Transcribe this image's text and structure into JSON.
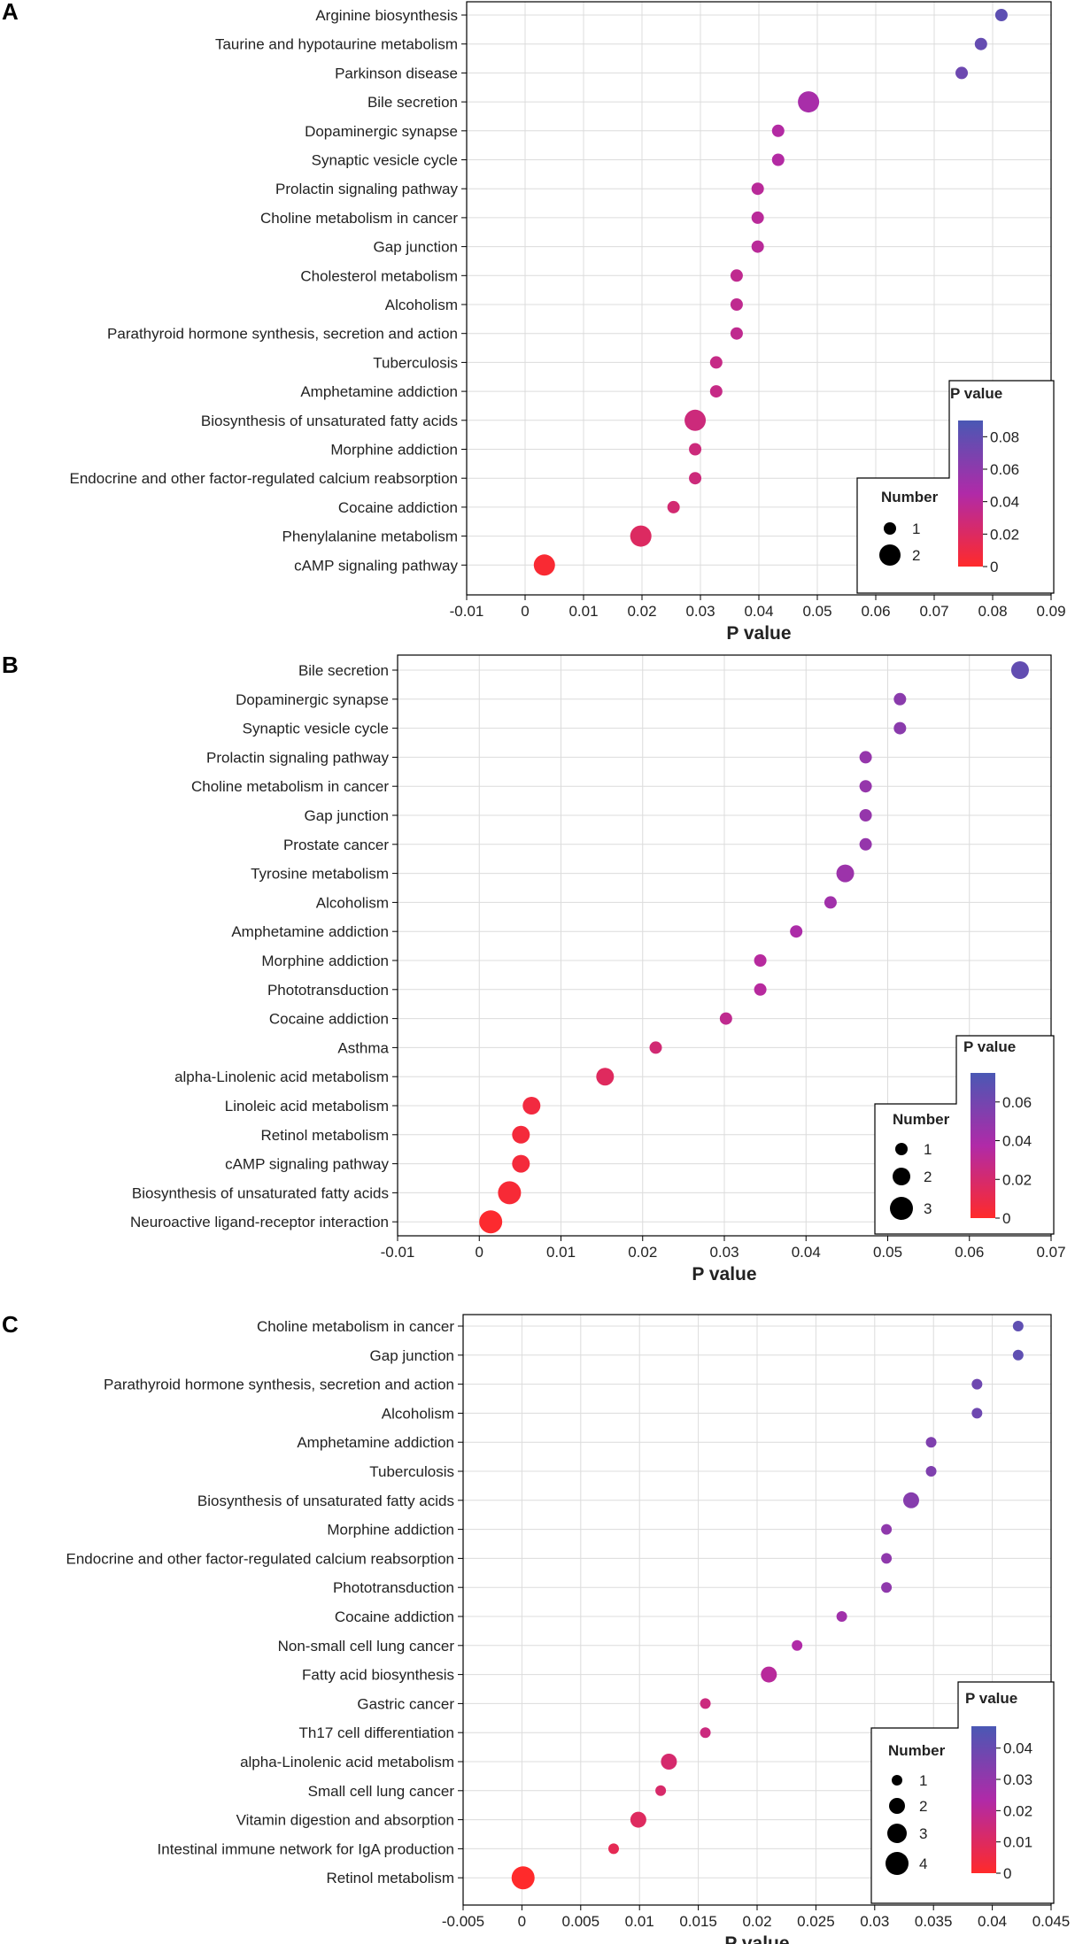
{
  "chart_data": [
    {
      "type": "scatter",
      "panel": "A",
      "xlabel": "P value",
      "xlim": [
        -0.01,
        0.09
      ],
      "xticks": [
        -0.01,
        0,
        0.01,
        0.02,
        0.03,
        0.04,
        0.05,
        0.06,
        0.07,
        0.08,
        0.09
      ],
      "xtick_labels": [
        "-0.01",
        "0",
        "0.01",
        "0.02",
        "0.03",
        "0.04",
        "0.05",
        "0.06",
        "0.07",
        "0.08",
        "0.09"
      ],
      "categories": [
        "Arginine biosynthesis",
        "Taurine and hypotaurine metabolism",
        "Parkinson disease",
        "Bile secretion",
        "Dopaminergic synapse",
        "Synaptic vesicle cycle",
        "Prolactin signaling pathway",
        "Choline metabolism in cancer",
        "Gap junction",
        "Cholesterol metabolism",
        "Alcoholism",
        "Parathyroid hormone synthesis, secretion and action",
        "Tuberculosis",
        "Amphetamine addiction",
        "Biosynthesis of unsaturated fatty acids",
        "Morphine addiction",
        "Endocrine and other factor-regulated calcium reabsorption",
        "Cocaine addiction",
        "Phenylalanine metabolism",
        "cAMP signaling pathway"
      ],
      "p_values": [
        0.0815,
        0.078,
        0.0747,
        0.0485,
        0.0433,
        0.0433,
        0.0398,
        0.0398,
        0.0398,
        0.0362,
        0.0362,
        0.0362,
        0.0327,
        0.0327,
        0.0291,
        0.0291,
        0.0291,
        0.0254,
        0.0198,
        0.0033
      ],
      "numbers": [
        1,
        1,
        1,
        2,
        1,
        1,
        1,
        1,
        1,
        1,
        1,
        1,
        1,
        1,
        2,
        1,
        1,
        1,
        2,
        2
      ],
      "colorbar": {
        "title": "P value",
        "min": 0,
        "max": 0.09,
        "ticks": [
          0,
          0.02,
          0.04,
          0.06,
          0.08
        ],
        "tick_labels": [
          "0",
          "0.02",
          "0.04",
          "0.06",
          "0.08"
        ]
      },
      "size_legend": {
        "title": "Number",
        "values": [
          1,
          2
        ],
        "labels": [
          "1",
          "2"
        ]
      }
    },
    {
      "type": "scatter",
      "panel": "B",
      "xlabel": "P value",
      "xlim": [
        -0.01,
        0.07
      ],
      "xticks": [
        -0.01,
        0,
        0.01,
        0.02,
        0.03,
        0.04,
        0.05,
        0.06,
        0.07
      ],
      "xtick_labels": [
        "-0.01",
        "0",
        "0.01",
        "0.02",
        "0.03",
        "0.04",
        "0.05",
        "0.06",
        "0.07"
      ],
      "categories": [
        "Bile secretion",
        "Dopaminergic synapse",
        "Synaptic vesicle cycle",
        "Prolactin signaling pathway",
        "Choline metabolism in cancer",
        "Gap junction",
        "Prostate cancer",
        "Tyrosine metabolism",
        "Alcoholism",
        "Amphetamine addiction",
        "Morphine addiction",
        "Phototransduction",
        "Cocaine addiction",
        "Asthma",
        "alpha-Linolenic acid metabolism",
        "Linoleic acid metabolism",
        "Retinol metabolism",
        "cAMP signaling pathway",
        "Biosynthesis of unsaturated fatty acids",
        "Neuroactive ligand-receptor interaction"
      ],
      "p_values": [
        0.0662,
        0.0515,
        0.0515,
        0.0473,
        0.0473,
        0.0473,
        0.0473,
        0.0448,
        0.043,
        0.0388,
        0.0344,
        0.0344,
        0.0302,
        0.0216,
        0.0154,
        0.0064,
        0.0051,
        0.0051,
        0.0037,
        0.0014
      ],
      "numbers": [
        2,
        1,
        1,
        1,
        1,
        1,
        1,
        2,
        1,
        1,
        1,
        1,
        1,
        1,
        2,
        2,
        2,
        2,
        3,
        3
      ],
      "colorbar": {
        "title": "P value",
        "min": 0,
        "max": 0.075,
        "ticks": [
          0,
          0.02,
          0.04,
          0.06
        ],
        "tick_labels": [
          "0",
          "0.02",
          "0.04",
          "0.06"
        ]
      },
      "size_legend": {
        "title": "Number",
        "values": [
          1,
          2,
          3
        ],
        "labels": [
          "1",
          "2",
          "3"
        ]
      }
    },
    {
      "type": "scatter",
      "panel": "C",
      "xlabel": "P value",
      "xlim": [
        -0.005,
        0.045
      ],
      "xticks": [
        -0.005,
        0,
        0.005,
        0.01,
        0.015,
        0.02,
        0.025,
        0.03,
        0.035,
        0.04,
        0.045
      ],
      "xtick_labels": [
        "-0.005",
        "0",
        "0.005",
        "0.01",
        "0.015",
        "0.02",
        "0.025",
        "0.03",
        "0.035",
        "0.04",
        "0.045"
      ],
      "categories": [
        "Choline metabolism in cancer",
        "Gap junction",
        "Parathyroid hormone synthesis, secretion and action",
        "Alcoholism",
        "Amphetamine addiction",
        "Tuberculosis",
        "Biosynthesis of unsaturated fatty acids",
        "Morphine addiction",
        "Endocrine and other factor-regulated calcium reabsorption",
        "Phototransduction",
        "Cocaine addiction",
        "Non-small cell lung cancer",
        "Fatty acid biosynthesis",
        "Gastric cancer",
        "Th17 cell differentiation",
        "alpha-Linolenic acid metabolism",
        "Small cell lung cancer",
        "Vitamin digestion and absorption",
        "Intestinal immune network for IgA production",
        "Retinol metabolism"
      ],
      "p_values": [
        0.0422,
        0.0422,
        0.0387,
        0.0387,
        0.0348,
        0.0348,
        0.0331,
        0.031,
        0.031,
        0.031,
        0.0272,
        0.0234,
        0.021,
        0.0156,
        0.0156,
        0.0125,
        0.0118,
        0.0099,
        0.0078,
        0.0001
      ],
      "numbers": [
        1,
        1,
        1,
        1,
        1,
        1,
        2,
        1,
        1,
        1,
        1,
        1,
        2,
        1,
        1,
        2,
        1,
        2,
        1,
        4
      ],
      "colorbar": {
        "title": "P value",
        "min": 0,
        "max": 0.047,
        "ticks": [
          0,
          0.01,
          0.02,
          0.03,
          0.04
        ],
        "tick_labels": [
          "0",
          "0.01",
          "0.02",
          "0.03",
          "0.04"
        ]
      },
      "size_legend": {
        "title": "Number",
        "values": [
          1,
          2,
          3,
          4
        ],
        "labels": [
          "1",
          "2",
          "3",
          "4"
        ]
      }
    }
  ],
  "colors": {
    "low": "#ff2a2a",
    "mid": "#b02aa8",
    "high": "#4a58b4",
    "grid": "#dcdcdc",
    "frame": "#000000"
  }
}
